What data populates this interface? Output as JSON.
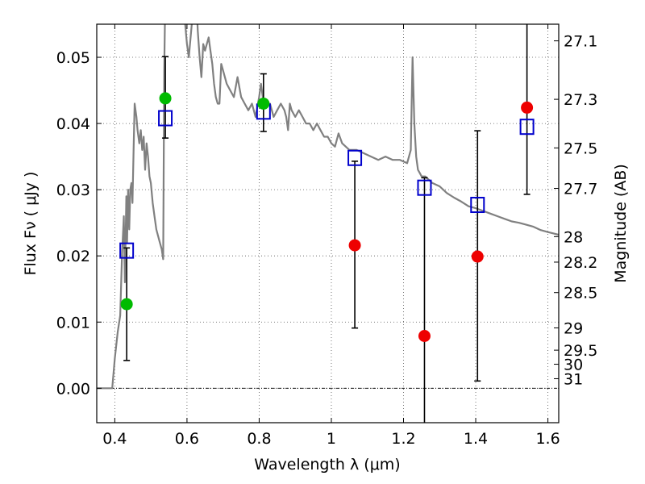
{
  "chart_data": {
    "type": "scatter",
    "xlabel": "Wavelength  λ (μm)",
    "ylabel": "Flux  Fν  ( μJy )",
    "ylabel2": "Magnitude (AB)",
    "xlim": [
      0.35,
      1.63
    ],
    "ylim": [
      -0.0052,
      0.055
    ],
    "grid": true,
    "x_ticks": [
      0.4,
      0.6,
      0.8,
      1.0,
      1.2,
      1.4,
      1.6
    ],
    "x_tick_labels": [
      "0.4",
      "0.6",
      "0.8",
      "1",
      "1.2",
      "1.4",
      "1.6"
    ],
    "y_ticks": [
      0.0,
      0.01,
      0.02,
      0.03,
      0.04,
      0.05
    ],
    "y_tick_labels": [
      "0.00",
      "0.01",
      "0.02",
      "0.03",
      "0.04",
      "0.05"
    ],
    "right_ticks": [
      {
        "label": "27.1",
        "value": 27.1
      },
      {
        "label": "27.3",
        "value": 27.3
      },
      {
        "label": "27.5",
        "value": 27.5
      },
      {
        "label": "27.7",
        "value": 27.7
      },
      {
        "label": "28",
        "value": 28.0
      },
      {
        "label": "28.2",
        "value": 28.2
      },
      {
        "label": "28.5",
        "value": 28.5
      },
      {
        "label": "29",
        "value": 29.0
      },
      {
        "label": "29.5",
        "value": 29.5
      },
      {
        "label": "30",
        "value": 30.0
      },
      {
        "label": "31",
        "value": 31.0
      }
    ],
    "model_sed": {
      "color": "#808080",
      "x": [
        0.35,
        0.385,
        0.393,
        0.4,
        0.408,
        0.415,
        0.42,
        0.425,
        0.428,
        0.432,
        0.434,
        0.437,
        0.44,
        0.443,
        0.446,
        0.449,
        0.452,
        0.455,
        0.46,
        0.463,
        0.468,
        0.472,
        0.476,
        0.48,
        0.484,
        0.488,
        0.492,
        0.496,
        0.5,
        0.505,
        0.51,
        0.515,
        0.52,
        0.525,
        0.53,
        0.534,
        0.537,
        0.54,
        0.545,
        0.55,
        0.555,
        0.56,
        0.565,
        0.57,
        0.575,
        0.58,
        0.585,
        0.59,
        0.595,
        0.6,
        0.605,
        0.61,
        0.615,
        0.62,
        0.625,
        0.63,
        0.635,
        0.64,
        0.645,
        0.65,
        0.655,
        0.66,
        0.665,
        0.67,
        0.675,
        0.68,
        0.685,
        0.69,
        0.695,
        0.7,
        0.71,
        0.72,
        0.73,
        0.74,
        0.75,
        0.76,
        0.77,
        0.78,
        0.79,
        0.8,
        0.805,
        0.81,
        0.82,
        0.83,
        0.84,
        0.85,
        0.86,
        0.87,
        0.875,
        0.88,
        0.885,
        0.89,
        0.9,
        0.91,
        0.92,
        0.93,
        0.94,
        0.95,
        0.96,
        0.97,
        0.98,
        0.99,
        1.0,
        1.01,
        1.02,
        1.03,
        1.05,
        1.07,
        1.09,
        1.11,
        1.13,
        1.15,
        1.17,
        1.19,
        1.21,
        1.22,
        1.225,
        1.23,
        1.235,
        1.24,
        1.245,
        1.25,
        1.26,
        1.28,
        1.3,
        1.32,
        1.34,
        1.36,
        1.38,
        1.4,
        1.42,
        1.44,
        1.46,
        1.48,
        1.5,
        1.52,
        1.54,
        1.56,
        1.58,
        1.6,
        1.63
      ],
      "y": [
        0.0,
        0.0,
        0.0,
        0.0045,
        0.0085,
        0.011,
        0.02,
        0.026,
        0.016,
        0.029,
        0.022,
        0.03,
        0.024,
        0.03,
        0.031,
        0.028,
        0.036,
        0.043,
        0.041,
        0.039,
        0.037,
        0.039,
        0.036,
        0.038,
        0.033,
        0.037,
        0.035,
        0.032,
        0.031,
        0.028,
        0.026,
        0.024,
        0.023,
        0.022,
        0.021,
        0.0195,
        0.048,
        0.06,
        0.061,
        0.061,
        0.061,
        0.06,
        0.058,
        0.06,
        0.061,
        0.061,
        0.061,
        0.057,
        0.055,
        0.052,
        0.05,
        0.053,
        0.056,
        0.059,
        0.06,
        0.054,
        0.05,
        0.047,
        0.052,
        0.051,
        0.052,
        0.053,
        0.051,
        0.049,
        0.046,
        0.044,
        0.043,
        0.043,
        0.049,
        0.048,
        0.046,
        0.045,
        0.044,
        0.047,
        0.044,
        0.043,
        0.042,
        0.043,
        0.041,
        0.044,
        0.046,
        0.044,
        0.043,
        0.043,
        0.041,
        0.042,
        0.043,
        0.042,
        0.041,
        0.039,
        0.043,
        0.042,
        0.041,
        0.042,
        0.041,
        0.04,
        0.04,
        0.039,
        0.04,
        0.039,
        0.038,
        0.038,
        0.037,
        0.0365,
        0.0385,
        0.037,
        0.036,
        0.036,
        0.0355,
        0.035,
        0.0345,
        0.035,
        0.0345,
        0.0345,
        0.034,
        0.036,
        0.05,
        0.04,
        0.035,
        0.033,
        0.0325,
        0.032,
        0.032,
        0.031,
        0.0305,
        0.0295,
        0.0288,
        0.0282,
        0.0275,
        0.0272,
        0.0268,
        0.0264,
        0.026,
        0.0256,
        0.0252,
        0.025,
        0.0247,
        0.0244,
        0.0239,
        0.0236,
        0.0232
      ]
    },
    "series": [
      {
        "name": "",
        "marker": "open-square",
        "color": "#0000cc",
        "x": [
          0.433,
          0.54,
          0.812,
          1.065,
          1.258,
          1.405,
          1.542
        ],
        "y": [
          0.0208,
          0.0408,
          0.0418,
          0.0348,
          0.0303,
          0.0277,
          0.0395
        ]
      },
      {
        "name": "",
        "marker": "filled-circle",
        "color": "#00bb00",
        "x": [
          0.433,
          0.54,
          0.812
        ],
        "y": [
          0.0127,
          0.0438,
          0.043
        ]
      },
      {
        "name": "",
        "marker": "filled-circle",
        "color": "#ee0000",
        "x": [
          1.065,
          1.258,
          1.405,
          1.542
        ],
        "y": [
          0.0216,
          0.0079,
          0.0199,
          0.0424
        ]
      }
    ],
    "error_bars": [
      {
        "x": 0.433,
        "ylo": 0.0042,
        "yhi": 0.0212
      },
      {
        "x": 0.54,
        "ylo": 0.0378,
        "yhi": 0.0501
      },
      {
        "x": 0.812,
        "ylo": 0.0388,
        "yhi": 0.0475
      },
      {
        "x": 1.065,
        "ylo": 0.0091,
        "yhi": 0.0343
      },
      {
        "x": 1.258,
        "ylo": -0.006,
        "yhi": 0.0318
      },
      {
        "x": 1.405,
        "ylo": 0.0011,
        "yhi": 0.0389
      },
      {
        "x": 1.542,
        "ylo": 0.0293,
        "yhi": 0.06
      }
    ]
  }
}
